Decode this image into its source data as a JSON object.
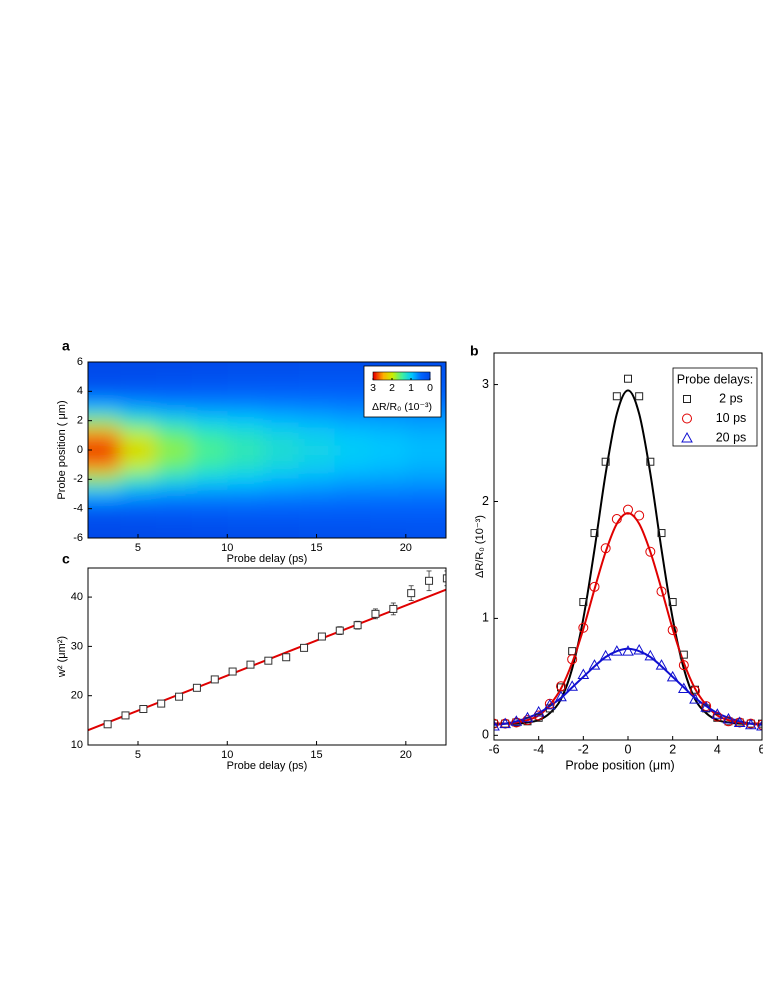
{
  "chart_data": [
    {
      "type": "heatmap",
      "label": "a",
      "xlabel": "Probe delay (ps)",
      "ylabel": "Probe position ( μm)",
      "x": [
        3,
        5,
        7,
        9,
        11,
        13,
        15,
        17,
        19,
        21
      ],
      "y": [
        -6,
        -5,
        -4,
        -3,
        -2,
        -1,
        0,
        1,
        2,
        3,
        4,
        5,
        6
      ],
      "z": [
        [
          0.05,
          0.1,
          0.33,
          0.87,
          1.73,
          2.61,
          3.0,
          2.61,
          1.73,
          0.87,
          0.33,
          0.1,
          0.05
        ],
        [
          0.04,
          0.12,
          0.35,
          0.78,
          1.39,
          1.96,
          2.2,
          1.96,
          1.39,
          0.78,
          0.35,
          0.12,
          0.04
        ],
        [
          0.05,
          0.15,
          0.37,
          0.73,
          1.21,
          1.63,
          1.8,
          1.63,
          1.21,
          0.73,
          0.37,
          0.15,
          0.05
        ],
        [
          0.07,
          0.18,
          0.38,
          0.71,
          1.09,
          1.42,
          1.55,
          1.42,
          1.09,
          0.71,
          0.38,
          0.18,
          0.07
        ],
        [
          0.09,
          0.2,
          0.4,
          0.7,
          1.03,
          1.3,
          1.4,
          1.3,
          1.03,
          0.7,
          0.4,
          0.2,
          0.09
        ],
        [
          0.1,
          0.22,
          0.41,
          0.67,
          0.94,
          1.17,
          1.25,
          1.17,
          0.94,
          0.67,
          0.41,
          0.22,
          0.1
        ],
        [
          0.12,
          0.23,
          0.41,
          0.65,
          0.89,
          1.08,
          1.15,
          1.08,
          0.89,
          0.65,
          0.41,
          0.23,
          0.12
        ],
        [
          0.13,
          0.24,
          0.41,
          0.62,
          0.83,
          0.99,
          1.05,
          0.99,
          0.83,
          0.62,
          0.41,
          0.24,
          0.13
        ],
        [
          0.14,
          0.26,
          0.42,
          0.61,
          0.81,
          0.95,
          1.0,
          0.95,
          0.81,
          0.61,
          0.42,
          0.26,
          0.14
        ],
        [
          0.15,
          0.27,
          0.42,
          0.6,
          0.78,
          0.9,
          0.95,
          0.9,
          0.78,
          0.6,
          0.42,
          0.27,
          0.15
        ]
      ],
      "xlim": [
        2.2,
        22.25
      ],
      "ylim": [
        -6,
        6
      ],
      "xticks": [
        5,
        10,
        15,
        20
      ],
      "yticks": [
        -6,
        -4,
        -2,
        0,
        2,
        4,
        6
      ],
      "colormap": [
        "#0046e6",
        "#0064ff",
        "#00c8ff",
        "#40f0a0",
        "#c8f000",
        "#ffb000",
        "#e80000"
      ],
      "zlim": [
        3,
        0
      ],
      "colorbar_ticks": [
        3,
        2,
        1,
        0
      ],
      "colorbar_label": "ΔR/R₀ (10⁻³)"
    },
    {
      "type": "scatter",
      "label": "b",
      "xlabel": "Probe position  (μm)",
      "ylabel": "ΔR/R₀ (10⁻³)",
      "xlim": [
        -6,
        6
      ],
      "ylim": [
        -0.04,
        3.27
      ],
      "xticks": [
        -6,
        -4,
        -2,
        0,
        2,
        4,
        6
      ],
      "yticks": [
        0,
        1,
        2,
        3
      ],
      "legend_title": "Probe delays:",
      "legend": "upper right",
      "series": [
        {
          "name": "2 ps",
          "marker": "square",
          "color": "#222222",
          "x": [
            -6,
            -5.5,
            -5,
            -4.5,
            -4,
            -3.5,
            -3,
            -2.5,
            -2,
            -1.5,
            -1,
            -0.5,
            0,
            0.5,
            1,
            1.5,
            2,
            2.5,
            3,
            3.5,
            4,
            4.5,
            5,
            5.5,
            6
          ],
          "values": [
            0.1,
            0.1,
            0.11,
            0.12,
            0.15,
            0.23,
            0.41,
            0.72,
            1.14,
            1.73,
            2.34,
            2.9,
            3.05,
            2.9,
            2.34,
            1.73,
            1.14,
            0.69,
            0.39,
            0.23,
            0.15,
            0.12,
            0.11,
            0.1,
            0.1
          ]
        },
        {
          "name": "10 ps",
          "marker": "circle",
          "color": "#e00000",
          "x": [
            -6,
            -5.5,
            -5,
            -4.5,
            -4,
            -3.5,
            -3,
            -2.5,
            -2,
            -1.5,
            -1,
            -0.5,
            0,
            0.5,
            1,
            1.5,
            2,
            2.5,
            3,
            3.5,
            4,
            4.5,
            5,
            5.5,
            6
          ],
          "values": [
            0.1,
            0.1,
            0.11,
            0.13,
            0.17,
            0.27,
            0.42,
            0.65,
            0.92,
            1.27,
            1.6,
            1.85,
            1.93,
            1.88,
            1.57,
            1.23,
            0.9,
            0.6,
            0.38,
            0.25,
            0.16,
            0.12,
            0.11,
            0.1,
            0.09
          ]
        },
        {
          "name": "20 ps",
          "marker": "triangle",
          "color": "#1010d0",
          "x": [
            -6,
            -5.5,
            -5,
            -4.5,
            -4,
            -3.5,
            -3,
            -2.5,
            -2,
            -1.5,
            -1,
            -0.5,
            0,
            0.5,
            1,
            1.5,
            2,
            2.5,
            3,
            3.5,
            4,
            4.5,
            5,
            5.5,
            6
          ],
          "values": [
            0.08,
            0.1,
            0.12,
            0.15,
            0.2,
            0.26,
            0.33,
            0.42,
            0.52,
            0.6,
            0.68,
            0.72,
            0.72,
            0.73,
            0.68,
            0.6,
            0.5,
            0.4,
            0.31,
            0.24,
            0.18,
            0.14,
            0.11,
            0.09,
            0.08
          ]
        }
      ],
      "fits": [
        {
          "color": "#000000",
          "x": [
            -6,
            -5.5,
            -5,
            -4.5,
            -4,
            -3.5,
            -3,
            -2.5,
            -2,
            -1.5,
            -1,
            -0.5,
            0,
            0.5,
            1,
            1.5,
            2,
            2.5,
            3,
            3.5,
            4,
            4.5,
            5,
            5.5,
            6
          ],
          "values": [
            0.1,
            0.1,
            0.1,
            0.11,
            0.13,
            0.19,
            0.31,
            0.57,
            1.0,
            1.59,
            2.24,
            2.75,
            2.95,
            2.75,
            2.24,
            1.59,
            1.0,
            0.57,
            0.31,
            0.19,
            0.13,
            0.11,
            0.1,
            0.1,
            0.1
          ]
        },
        {
          "color": "#e00000",
          "x": [
            -6,
            -5.5,
            -5,
            -4.5,
            -4,
            -3.5,
            -3,
            -2.5,
            -2,
            -1.5,
            -1,
            -0.5,
            0,
            0.5,
            1,
            1.5,
            2,
            2.5,
            3,
            3.5,
            4,
            4.5,
            5,
            5.5,
            6
          ],
          "values": [
            0.1,
            0.1,
            0.11,
            0.13,
            0.17,
            0.26,
            0.4,
            0.62,
            0.91,
            1.25,
            1.57,
            1.81,
            1.9,
            1.81,
            1.57,
            1.25,
            0.91,
            0.62,
            0.4,
            0.26,
            0.17,
            0.13,
            0.11,
            0.1,
            0.1
          ]
        },
        {
          "color": "#1010d0",
          "x": [
            -6,
            -5.5,
            -5,
            -4.5,
            -4,
            -3.5,
            -3,
            -2.5,
            -2,
            -1.5,
            -1,
            -0.5,
            0,
            0.5,
            1,
            1.5,
            2,
            2.5,
            3,
            3.5,
            4,
            4.5,
            5,
            5.5,
            6
          ],
          "values": [
            0.09,
            0.1,
            0.12,
            0.15,
            0.19,
            0.25,
            0.32,
            0.41,
            0.5,
            0.59,
            0.67,
            0.72,
            0.74,
            0.72,
            0.67,
            0.59,
            0.5,
            0.41,
            0.32,
            0.25,
            0.19,
            0.15,
            0.12,
            0.1,
            0.09
          ]
        }
      ]
    },
    {
      "type": "scatter",
      "label": "c",
      "xlabel": "Probe delay (ps)",
      "ylabel": "w² (μm²)",
      "xlim": [
        2.2,
        22.25
      ],
      "ylim": [
        10,
        45.9
      ],
      "xticks": [
        5,
        10,
        15,
        20
      ],
      "yticks": [
        10,
        20,
        30,
        40
      ],
      "series": [
        {
          "marker": "square",
          "color": "#333333",
          "x": [
            3.3,
            4.3,
            5.3,
            6.3,
            7.3,
            8.3,
            9.3,
            10.3,
            11.3,
            12.3,
            13.3,
            14.3,
            15.3,
            16.3,
            17.3,
            18.3,
            19.3,
            20.3,
            21.3,
            22.3
          ],
          "values": [
            14.2,
            16.0,
            17.3,
            18.4,
            19.8,
            21.6,
            23.3,
            24.9,
            26.3,
            27.1,
            27.8,
            29.7,
            32.0,
            33.2,
            34.3,
            36.6,
            37.6,
            40.8,
            43.3,
            43.8
          ],
          "errors": [
            0.4,
            0.4,
            0.4,
            0.4,
            0.4,
            0.4,
            0.4,
            0.4,
            0.4,
            0.4,
            0.5,
            0.6,
            0.6,
            0.8,
            0.8,
            1.0,
            1.2,
            1.5,
            2.0,
            1.5
          ]
        }
      ],
      "fits": [
        {
          "color": "#e00000",
          "x": [
            2.2,
            22.25
          ],
          "values": [
            13.0,
            41.5
          ]
        }
      ]
    }
  ]
}
